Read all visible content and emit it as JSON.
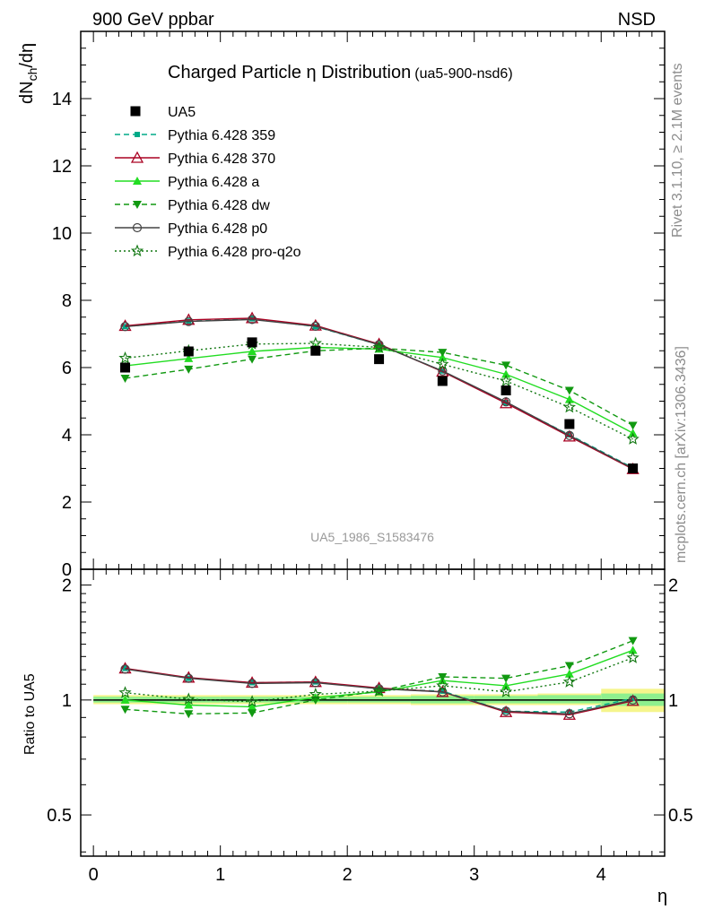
{
  "header": {
    "left": "900 GeV ppbar",
    "right": "NSD"
  },
  "title": {
    "main": "Charged Particle η Distribution",
    "tag": "(ua5-900-nsd6)"
  },
  "side_texts": {
    "rivet": "Rivet 3.1.10, ≥ 2.1M events",
    "mcplots": "mcplots.cern.ch [arXiv:1306.3436]"
  },
  "watermark": "UA5_1986_S1583476",
  "chart_data": [
    {
      "type": "line",
      "panel": "main",
      "ylabel": "dNch/dη",
      "ylim": [
        0,
        16
      ],
      "yticks": [
        0,
        2,
        4,
        6,
        8,
        10,
        12,
        14
      ],
      "xlim": [
        -0.1,
        4.5
      ],
      "legend_position": "top-left",
      "x": [
        0.25,
        0.75,
        1.25,
        1.75,
        2.25,
        2.75,
        3.25,
        3.75,
        4.25
      ],
      "data": {
        "name": "UA5",
        "values": [
          6.0,
          6.48,
          6.75,
          6.5,
          6.25,
          5.6,
          5.32,
          4.32,
          3.0
        ],
        "color": "#000000"
      },
      "series": [
        {
          "name": "Pythia 6.428 359",
          "values": [
            7.22,
            7.38,
            7.45,
            7.22,
            6.68,
            5.9,
            4.96,
            4.0,
            3.02
          ],
          "color": "#00aa88",
          "dash": "6,4",
          "marker": "square-small"
        },
        {
          "name": "Pythia 6.428 370",
          "values": [
            7.24,
            7.42,
            7.47,
            7.25,
            6.7,
            5.88,
            4.94,
            3.95,
            2.98
          ],
          "color": "#aa0022",
          "dash": "",
          "marker": "triangle-open"
        },
        {
          "name": "Pythia 6.428 a",
          "values": [
            6.05,
            6.27,
            6.48,
            6.6,
            6.55,
            6.3,
            5.8,
            5.05,
            4.05
          ],
          "color": "#22dd22",
          "dash": "",
          "marker": "triangle-filled"
        },
        {
          "name": "Pythia 6.428 dw",
          "values": [
            5.68,
            5.95,
            6.25,
            6.5,
            6.58,
            6.45,
            6.07,
            5.32,
            4.28
          ],
          "color": "#119911",
          "dash": "6,4",
          "marker": "triangle-down"
        },
        {
          "name": "Pythia 6.428 p0",
          "values": [
            7.22,
            7.37,
            7.43,
            7.23,
            6.68,
            5.9,
            4.98,
            3.98,
            3.0
          ],
          "color": "#444444",
          "dash": "",
          "marker": "circle-open"
        },
        {
          "name": "Pythia 6.428 pro-q2o",
          "values": [
            6.28,
            6.5,
            6.7,
            6.72,
            6.6,
            6.1,
            5.6,
            4.82,
            3.87
          ],
          "color": "#117711",
          "dash": "2,3",
          "marker": "star"
        }
      ]
    },
    {
      "type": "line",
      "panel": "ratio",
      "xlabel": "η",
      "ylabel": "Ratio to UA5",
      "ylim": [
        0.39,
        2.2
      ],
      "yticks": [
        0.5,
        1,
        2
      ],
      "xticks": [
        0,
        1,
        2,
        3,
        4
      ],
      "xlim": [
        -0.1,
        4.5
      ],
      "bands": [
        {
          "x_low": 0.0,
          "x_high": 0.5,
          "outer": [
            0.975,
            1.03
          ],
          "inner": [
            0.985,
            1.02
          ]
        },
        {
          "x_low": 0.5,
          "x_high": 1.0,
          "outer": [
            0.975,
            1.03
          ],
          "inner": [
            0.985,
            1.02
          ]
        },
        {
          "x_low": 1.0,
          "x_high": 1.5,
          "outer": [
            0.975,
            1.03
          ],
          "inner": [
            0.985,
            1.02
          ]
        },
        {
          "x_low": 1.5,
          "x_high": 2.0,
          "outer": [
            0.975,
            1.03
          ],
          "inner": [
            0.985,
            1.02
          ]
        },
        {
          "x_low": 2.0,
          "x_high": 2.5,
          "outer": [
            0.975,
            1.03
          ],
          "inner": [
            0.985,
            1.02
          ]
        },
        {
          "x_low": 2.5,
          "x_high": 3.0,
          "outer": [
            0.97,
            1.035
          ],
          "inner": [
            0.98,
            1.025
          ]
        },
        {
          "x_low": 3.0,
          "x_high": 3.5,
          "outer": [
            0.97,
            1.035
          ],
          "inner": [
            0.98,
            1.025
          ]
        },
        {
          "x_low": 3.5,
          "x_high": 4.0,
          "outer": [
            0.97,
            1.04
          ],
          "inner": [
            0.98,
            1.03
          ]
        },
        {
          "x_low": 4.0,
          "x_high": 4.5,
          "outer": [
            0.93,
            1.07
          ],
          "inner": [
            0.965,
            1.04
          ]
        }
      ],
      "x": [
        0.25,
        0.75,
        1.25,
        1.75,
        2.25,
        2.75,
        3.25,
        3.75,
        4.25
      ],
      "series": [
        {
          "name": "Pythia 6.428 359",
          "values": [
            1.21,
            1.14,
            1.11,
            1.115,
            1.07,
            1.055,
            0.935,
            0.93,
            1.01
          ],
          "color": "#00aa88",
          "dash": "6,4",
          "marker": "square-small"
        },
        {
          "name": "Pythia 6.428 370",
          "values": [
            1.21,
            1.145,
            1.11,
            1.115,
            1.075,
            1.05,
            0.93,
            0.915,
            0.995
          ],
          "color": "#aa0022",
          "dash": "",
          "marker": "triangle-open"
        },
        {
          "name": "Pythia 6.428 a",
          "values": [
            1.0,
            0.97,
            0.96,
            1.015,
            1.05,
            1.125,
            1.09,
            1.17,
            1.35
          ],
          "color": "#22dd22",
          "dash": "",
          "marker": "triangle-filled"
        },
        {
          "name": "Pythia 6.428 dw",
          "values": [
            0.945,
            0.92,
            0.925,
            1.0,
            1.055,
            1.15,
            1.14,
            1.23,
            1.43
          ],
          "color": "#119911",
          "dash": "6,4",
          "marker": "triangle-down"
        },
        {
          "name": "Pythia 6.428 p0",
          "values": [
            1.205,
            1.14,
            1.105,
            1.11,
            1.07,
            1.05,
            0.935,
            0.92,
            1.0
          ],
          "color": "#444444",
          "dash": "",
          "marker": "circle-open"
        },
        {
          "name": "Pythia 6.428 pro-q2o",
          "values": [
            1.045,
            1.005,
            0.99,
            1.035,
            1.055,
            1.09,
            1.05,
            1.115,
            1.29
          ],
          "color": "#117711",
          "dash": "2,3",
          "marker": "star"
        }
      ]
    }
  ]
}
